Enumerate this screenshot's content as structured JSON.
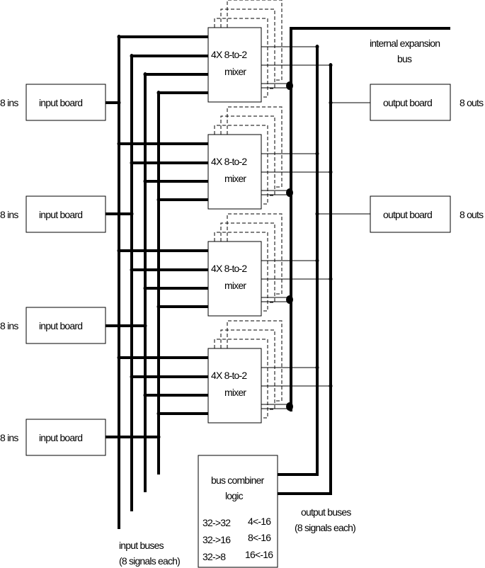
{
  "inputs": [
    {
      "side_label": "8 ins",
      "board_label": "input board"
    },
    {
      "side_label": "8 ins",
      "board_label": "input board"
    },
    {
      "side_label": "8 ins",
      "board_label": "input board"
    },
    {
      "side_label": "8 ins",
      "board_label": "input board"
    }
  ],
  "mixers": [
    {
      "line1": "4X 8-to-2",
      "line2": "mixer"
    },
    {
      "line1": "4X 8-to-2",
      "line2": "mixer"
    },
    {
      "line1": "4X 8-to-2",
      "line2": "mixer"
    },
    {
      "line1": "4X 8-to-2",
      "line2": "mixer"
    }
  ],
  "outputs": [
    {
      "board_label": "output board",
      "side_label": "8 outs"
    },
    {
      "board_label": "output board",
      "side_label": "8 outs"
    }
  ],
  "expansion_bus": {
    "line1": "internal expansion",
    "line2": "bus"
  },
  "combiner": {
    "line1": "bus combiner",
    "line2": "logic",
    "left_modes": [
      "32->32",
      "32->16",
      "32->8"
    ],
    "right_modes": [
      "4<-16",
      "8<-16",
      "16<-16"
    ]
  },
  "input_buses_label": {
    "line1": "input buses",
    "line2": "(8 signals each)"
  },
  "output_buses_label": {
    "line1": "output buses",
    "line2": "(8 signals each)"
  }
}
